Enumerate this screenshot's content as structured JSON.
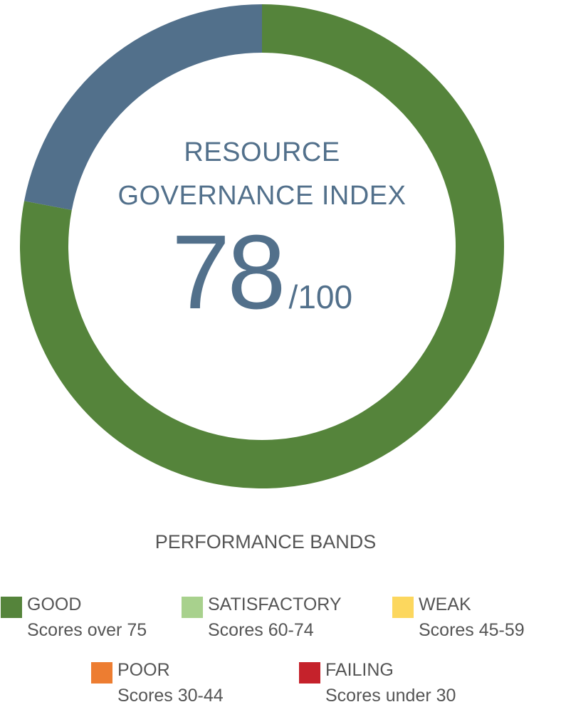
{
  "chart_data": {
    "type": "pie",
    "style": "donut",
    "title_lines": [
      "RESOURCE",
      "GOVERNANCE INDEX"
    ],
    "score": 78,
    "max_label": "/100",
    "max": 100,
    "colors": {
      "score": "#55843b",
      "remainder": "#52708b"
    },
    "legend": {
      "title": "PERFORMANCE BANDS",
      "bands": [
        {
          "name": "GOOD",
          "range": "Scores over 75",
          "color": "#55843b"
        },
        {
          "name": "SATISFACTORY",
          "range": "Scores 60-74",
          "color": "#a8d18d"
        },
        {
          "name": "WEAK",
          "range": "Scores 45-59",
          "color": "#fcd75e"
        },
        {
          "name": "POOR",
          "range": "Scores 30-44",
          "color": "#ed7d31"
        },
        {
          "name": "FAILING",
          "range": "Scores under 30",
          "color": "#c5222b"
        }
      ]
    }
  }
}
